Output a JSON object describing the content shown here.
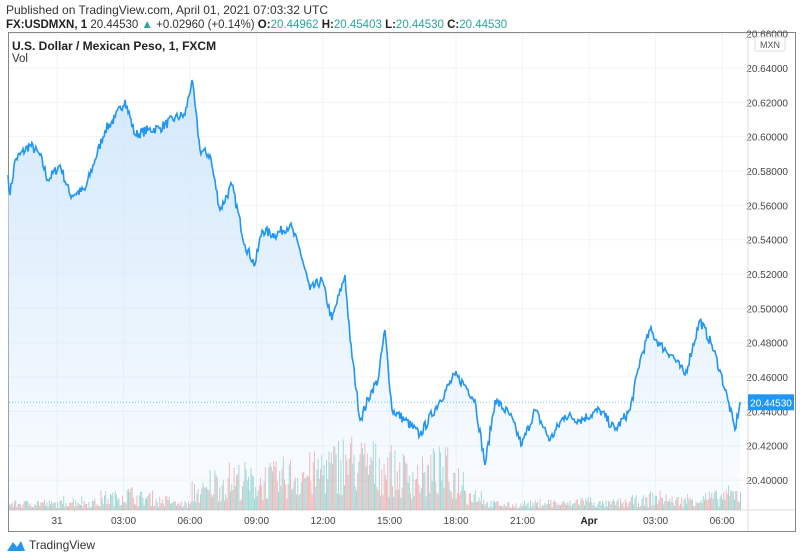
{
  "header": {
    "published": "Published on TradingView.com, April 01, 2021 07:03:32 UTC",
    "symbol": "FX:USDMXN, 1",
    "last": "20.44530",
    "change": "+0.02960 (+0.14%)",
    "o_label": "O:",
    "o": "20.44962",
    "h_label": "H:",
    "h": "20.45403",
    "l_label": "L:",
    "l": "20.44530",
    "c_label": "C:",
    "c": "20.44530"
  },
  "legend": {
    "title": "U.S. Dollar / Mexican Peso, 1, FXCM",
    "vol": "Vol"
  },
  "footer": {
    "brand": "TradingView"
  },
  "colors": {
    "line": "#2196f3",
    "up": "#26a69a",
    "down": "#ef5350",
    "fill": "#cfe6fb"
  },
  "chart_data": {
    "type": "area",
    "title": "U.S. Dollar / Mexican Peso, 1, FXCM",
    "currency_label": "MXN",
    "last_price_label": "20.44530",
    "last_price": 20.4453,
    "ylim": [
      20.38,
      20.66
    ],
    "y_ticks": [
      "20.66000",
      "20.64000",
      "20.62000",
      "20.60000",
      "20.58000",
      "20.56000",
      "20.54000",
      "20.52000",
      "20.50000",
      "20.48000",
      "20.46000",
      "20.44000",
      "20.42000",
      "20.40000"
    ],
    "x_ticks": [
      {
        "h": 0,
        "label": "31"
      },
      {
        "h": 3,
        "label": "03:00"
      },
      {
        "h": 6,
        "label": "06:00"
      },
      {
        "h": 9,
        "label": "09:00"
      },
      {
        "h": 12,
        "label": "12:00"
      },
      {
        "h": 15,
        "label": "15:00"
      },
      {
        "h": 18,
        "label": "18:00"
      },
      {
        "h": 21,
        "label": "21:00"
      },
      {
        "h": 24,
        "label": "Apr"
      },
      {
        "h": 27,
        "label": "03:00"
      },
      {
        "h": 30,
        "label": "06:00"
      }
    ],
    "x_unit": "hours since Mar 31 00:00 UTC",
    "points": [
      [
        -2.21,
        20.5777
      ],
      [
        -2.12,
        20.566
      ],
      [
        -1.89,
        20.5864
      ],
      [
        -1.22,
        20.5952
      ],
      [
        -0.77,
        20.5893
      ],
      [
        -0.41,
        20.5748
      ],
      [
        0.14,
        20.5835
      ],
      [
        0.59,
        20.566
      ],
      [
        1.26,
        20.5689
      ],
      [
        1.71,
        20.5864
      ],
      [
        2.17,
        20.6039
      ],
      [
        2.62,
        20.6109
      ],
      [
        3.07,
        20.6214
      ],
      [
        3.52,
        20.601
      ],
      [
        4.1,
        20.6039
      ],
      [
        4.65,
        20.6051
      ],
      [
        5.32,
        20.6109
      ],
      [
        5.77,
        20.6126
      ],
      [
        6.09,
        20.633
      ],
      [
        6.45,
        20.5922
      ],
      [
        6.9,
        20.5893
      ],
      [
        7.35,
        20.5573
      ],
      [
        7.89,
        20.5719
      ],
      [
        8.48,
        20.5369
      ],
      [
        8.93,
        20.5253
      ],
      [
        9.25,
        20.5456
      ],
      [
        9.83,
        20.5427
      ],
      [
        10.51,
        20.5486
      ],
      [
        10.96,
        20.534
      ],
      [
        11.41,
        20.5107
      ],
      [
        11.95,
        20.5165
      ],
      [
        12.4,
        20.4932
      ],
      [
        12.99,
        20.5194
      ],
      [
        13.22,
        20.4816
      ],
      [
        13.67,
        20.435
      ],
      [
        14.21,
        20.4525
      ],
      [
        14.48,
        20.4583
      ],
      [
        14.79,
        20.4874
      ],
      [
        15.11,
        20.4408
      ],
      [
        15.7,
        20.435
      ],
      [
        16.37,
        20.4263
      ],
      [
        17.28,
        20.4466
      ],
      [
        17.95,
        20.4612
      ],
      [
        18.4,
        20.4554
      ],
      [
        18.85,
        20.4466
      ],
      [
        19.31,
        20.4088
      ],
      [
        19.76,
        20.4466
      ],
      [
        20.43,
        20.4379
      ],
      [
        20.97,
        20.4204
      ],
      [
        21.56,
        20.4408
      ],
      [
        22.24,
        20.4233
      ],
      [
        22.91,
        20.4379
      ],
      [
        23.59,
        20.435
      ],
      [
        24.49,
        20.4408
      ],
      [
        25.17,
        20.4292
      ],
      [
        25.85,
        20.4408
      ],
      [
        26.3,
        20.47
      ],
      [
        26.75,
        20.4874
      ],
      [
        27.2,
        20.4787
      ],
      [
        27.74,
        20.4728
      ],
      [
        28.33,
        20.4612
      ],
      [
        29.0,
        20.4932
      ],
      [
        29.54,
        20.4787
      ],
      [
        29.9,
        20.4641
      ],
      [
        30.26,
        20.4466
      ],
      [
        30.58,
        20.4292
      ],
      [
        30.81,
        20.4453
      ]
    ],
    "volume_profile": [
      0.1,
      0.12,
      0.1,
      0.15,
      0.12,
      0.2,
      0.25,
      0.2,
      0.15,
      0.1,
      0.3,
      0.45,
      0.5,
      0.45,
      0.5,
      0.55,
      0.6,
      0.7,
      0.8,
      0.75,
      0.7,
      0.6,
      0.55,
      0.65,
      0.5,
      0.25,
      0.1,
      0.08,
      0.1,
      0.12,
      0.1,
      0.15,
      0.1,
      0.12,
      0.15,
      0.2,
      0.15,
      0.18,
      0.2,
      0.25
    ]
  }
}
